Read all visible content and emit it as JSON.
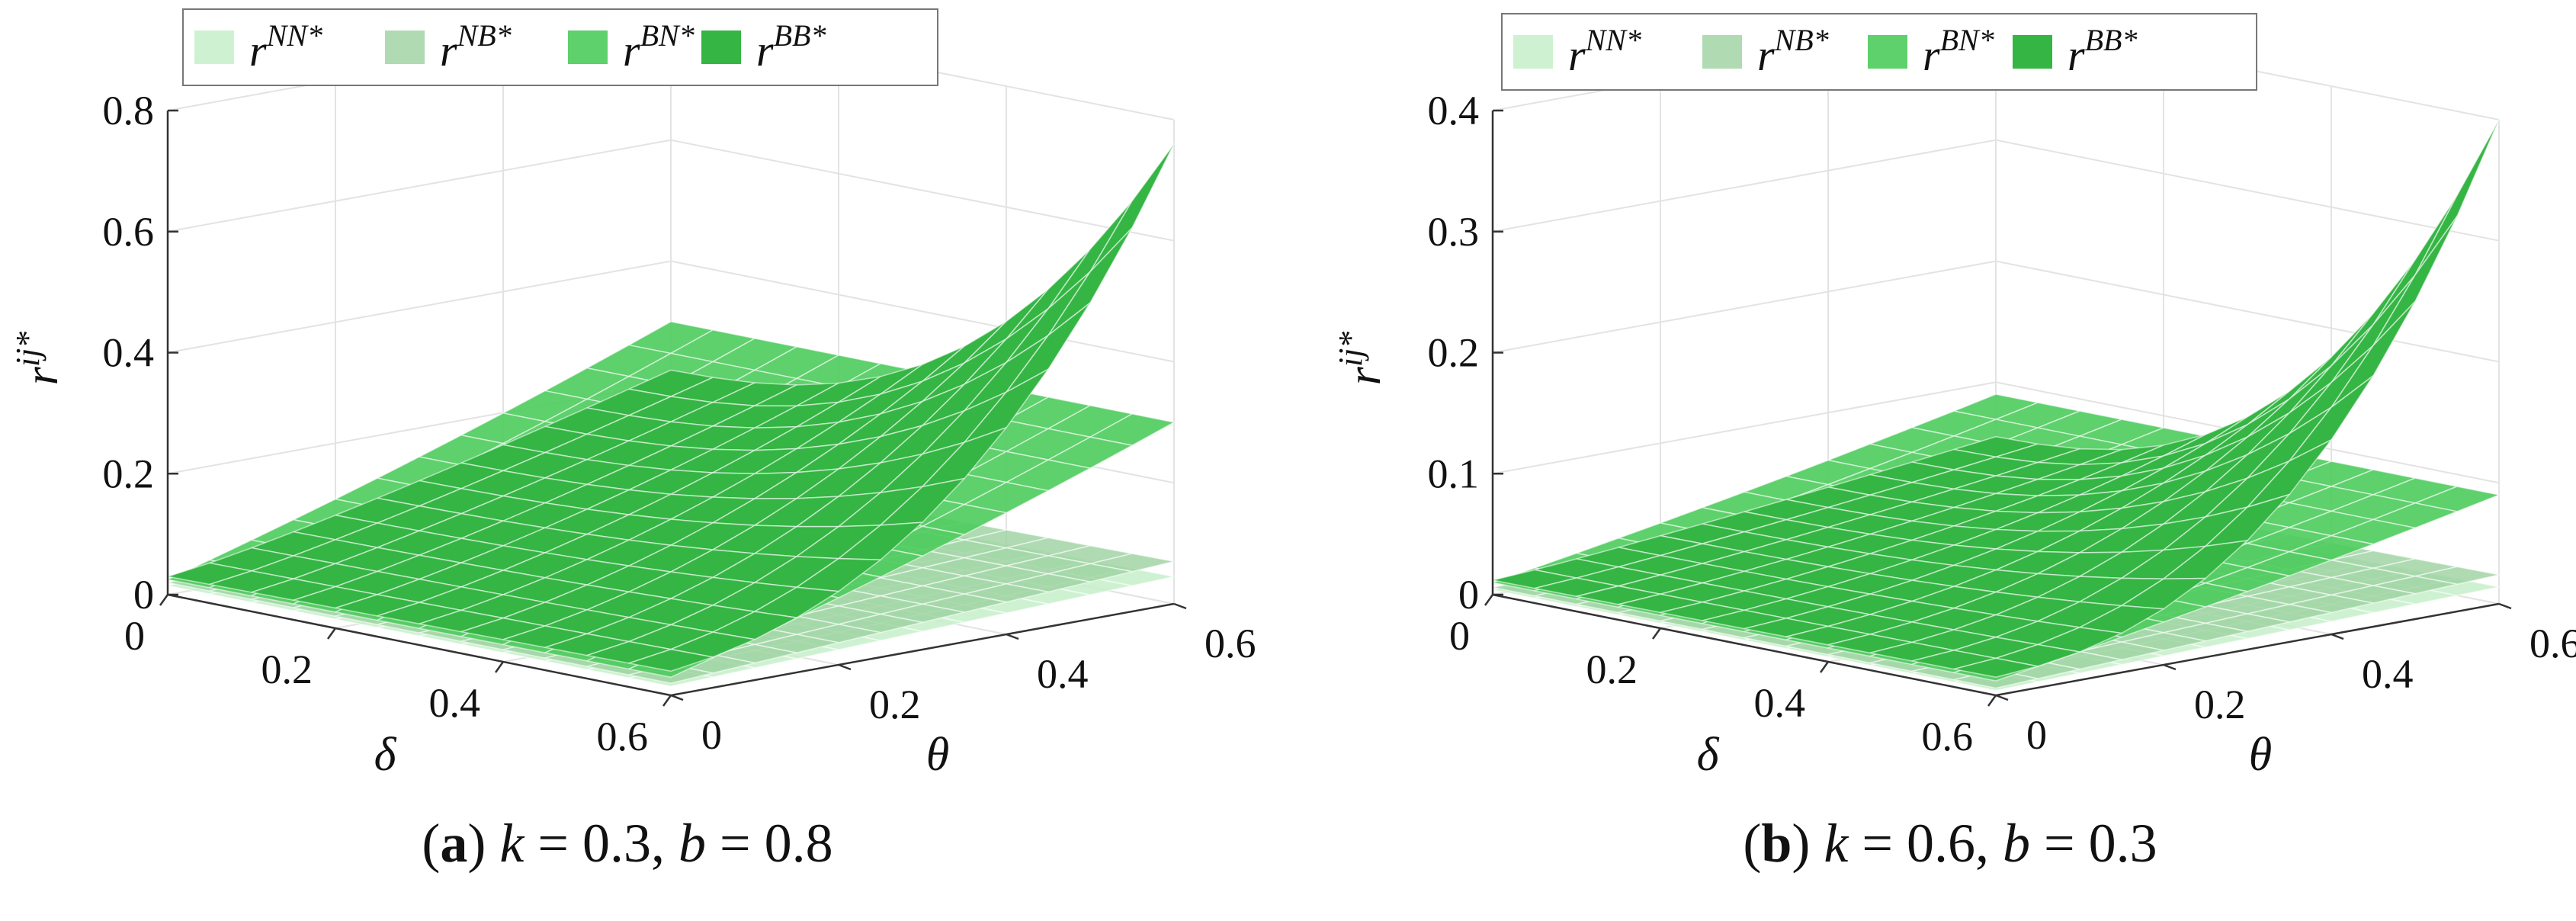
{
  "chart_data": [
    {
      "type": "surface3d",
      "panel": "a",
      "caption": {
        "label": "(a)",
        "params": [
          {
            "name": "k",
            "value": "0.3"
          },
          {
            "name": "b",
            "value": "0.8"
          }
        ]
      },
      "xlabel": "δ",
      "ylabel": "θ",
      "zlabel": "r^{ij*}",
      "xlim": [
        0,
        0.6
      ],
      "ylim": [
        0,
        0.6
      ],
      "zlim": [
        0,
        0.8
      ],
      "xticks": [
        "0",
        "0.2",
        "0.4",
        "0.6"
      ],
      "yticks": [
        "0",
        "0.2",
        "0.4",
        "0.6"
      ],
      "zticks": [
        "0",
        "0.2",
        "0.4",
        "0.6",
        "0.8"
      ],
      "legend_position": "top",
      "series": [
        {
          "name": "NN",
          "color": "#c6f0c9",
          "opacity": 0.85,
          "corners": {
            "d0t0": 0.015,
            "d06t0": 0.015,
            "d0t06": 0.04,
            "d06t06": 0.045
          }
        },
        {
          "name": "NB",
          "color": "#9bd19f",
          "opacity": 0.8,
          "corners": {
            "d0t0": 0.02,
            "d06t0": 0.02,
            "d0t06": 0.06,
            "d06t06": 0.07
          }
        },
        {
          "name": "BN",
          "color": "#4dcb5c",
          "opacity": 0.9,
          "corners": {
            "d0t0": 0.025,
            "d06t0": 0.03,
            "d0t06": 0.3,
            "d06t06": 0.3
          }
        },
        {
          "name": "BB",
          "color": "#35b544",
          "opacity": 1.0,
          "corners": {
            "d0t0": 0.03,
            "d06t0": 0.04,
            "d0t06": 0.22,
            "d06t06": 0.76
          }
        }
      ]
    },
    {
      "type": "surface3d",
      "panel": "b",
      "caption": {
        "label": "(b)",
        "params": [
          {
            "name": "k",
            "value": "0.6"
          },
          {
            "name": "b",
            "value": "0.3"
          }
        ]
      },
      "xlabel": "δ",
      "ylabel": "θ",
      "zlabel": "r^{ij*}",
      "xlim": [
        0,
        0.6
      ],
      "ylim": [
        0,
        0.6
      ],
      "zlim": [
        0,
        0.4
      ],
      "xticks": [
        "0",
        "0.2",
        "0.4",
        "0.6"
      ],
      "yticks": [
        "0",
        "0.2",
        "0.4",
        "0.6"
      ],
      "zticks": [
        "0",
        "0.1",
        "0.2",
        "0.3",
        "0.4"
      ],
      "legend_position": "top",
      "series": [
        {
          "name": "NN",
          "color": "#c6f0c9",
          "opacity": 0.85,
          "corners": {
            "d0t0": 0.004,
            "d06t0": 0.004,
            "d0t06": 0.012,
            "d06t06": 0.014
          }
        },
        {
          "name": "NB",
          "color": "#9bd19f",
          "opacity": 0.8,
          "corners": {
            "d0t0": 0.006,
            "d06t0": 0.006,
            "d0t06": 0.02,
            "d06t06": 0.024
          }
        },
        {
          "name": "BN",
          "color": "#4dcb5c",
          "opacity": 0.9,
          "corners": {
            "d0t0": 0.01,
            "d06t0": 0.012,
            "d0t06": 0.09,
            "d06t06": 0.09
          }
        },
        {
          "name": "BB",
          "color": "#35b544",
          "opacity": 1.0,
          "corners": {
            "d0t0": 0.012,
            "d06t0": 0.015,
            "d0t06": 0.055,
            "d06t06": 0.4
          }
        }
      ]
    }
  ]
}
